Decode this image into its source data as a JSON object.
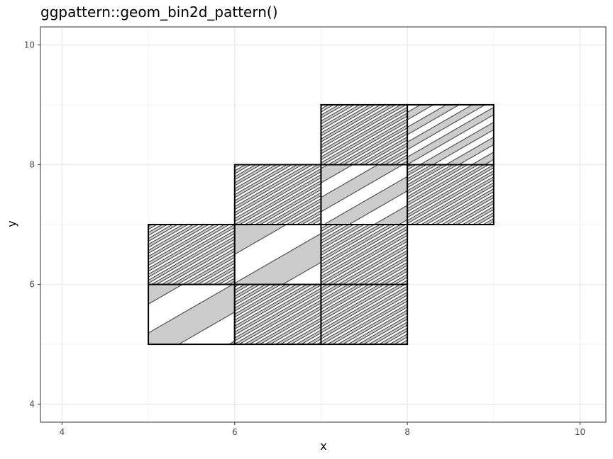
{
  "chart_data": {
    "type": "heatmap",
    "title": "ggpattern::geom_bin2d_pattern()",
    "xlabel": "x",
    "ylabel": "y",
    "xlim": [
      3.75,
      10.3
    ],
    "ylim": [
      3.7,
      10.3
    ],
    "x_ticks": [
      4,
      6,
      8,
      10
    ],
    "y_ticks": [
      4,
      6,
      8,
      10
    ],
    "grid": true,
    "legend": "none",
    "pattern": "stripe",
    "colors": {
      "background": "#ffffff",
      "grid_major": "#ebebeb",
      "grid_minor": "#f4f4f4",
      "panel_border": "#333333",
      "tile_border": "#000000",
      "tile_fill": "#ffffff",
      "stripe_fill": "#cccccc",
      "stripe_line": "#333333"
    },
    "bins": [
      {
        "xmin": 5,
        "xmax": 6,
        "ymin": 5,
        "ymax": 6,
        "stripe_spacing": 0.58
      },
      {
        "xmin": 6,
        "xmax": 7,
        "ymin": 5,
        "ymax": 6,
        "stripe_spacing": 0.06
      },
      {
        "xmin": 7,
        "xmax": 8,
        "ymin": 5,
        "ymax": 6,
        "stripe_spacing": 0.06
      },
      {
        "xmin": 5,
        "xmax": 6,
        "ymin": 6,
        "ymax": 7,
        "stripe_spacing": 0.06
      },
      {
        "xmin": 6,
        "xmax": 7,
        "ymin": 6,
        "ymax": 7,
        "stripe_spacing": 0.58
      },
      {
        "xmin": 7,
        "xmax": 8,
        "ymin": 6,
        "ymax": 7,
        "stripe_spacing": 0.06
      },
      {
        "xmin": 6,
        "xmax": 7,
        "ymin": 7,
        "ymax": 8,
        "stripe_spacing": 0.06
      },
      {
        "xmin": 7,
        "xmax": 8,
        "ymin": 7,
        "ymax": 8,
        "stripe_spacing": 0.29
      },
      {
        "xmin": 8,
        "xmax": 9,
        "ymin": 7,
        "ymax": 8,
        "stripe_spacing": 0.06
      },
      {
        "xmin": 7,
        "xmax": 8,
        "ymin": 8,
        "ymax": 9,
        "stripe_spacing": 0.06
      },
      {
        "xmin": 8,
        "xmax": 9,
        "ymin": 8,
        "ymax": 9,
        "stripe_spacing": 0.15
      }
    ]
  }
}
